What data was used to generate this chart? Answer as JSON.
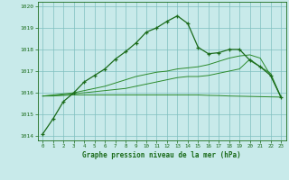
{
  "title": "Graphe pression niveau de la mer (hPa)",
  "background_color": "#c8eaea",
  "grid_color": "#7fbfbf",
  "line_color_main": "#1a6b1a",
  "line_color_secondary": "#2d8b2d",
  "xlim": [
    -0.5,
    23.5
  ],
  "ylim": [
    1013.8,
    1020.2
  ],
  "xticks": [
    0,
    1,
    2,
    3,
    4,
    5,
    6,
    7,
    8,
    9,
    10,
    11,
    12,
    13,
    14,
    15,
    16,
    17,
    18,
    19,
    20,
    21,
    22,
    23
  ],
  "yticks": [
    1014,
    1015,
    1016,
    1017,
    1018,
    1019,
    1020
  ],
  "series1": [
    1014.1,
    1014.8,
    1015.6,
    1016.0,
    1016.5,
    1016.8,
    1017.1,
    1017.55,
    1017.9,
    1018.3,
    1018.8,
    1019.0,
    1019.3,
    1019.55,
    1019.2,
    1018.1,
    1017.8,
    1017.85,
    1018.0,
    1018.0,
    1017.5,
    1017.2,
    1016.8,
    1015.8
  ],
  "series2": [
    1015.85,
    1015.85,
    1015.88,
    1015.9,
    1015.9,
    1015.9,
    1015.9,
    1015.9,
    1015.9,
    1015.9,
    1015.9,
    1015.9,
    1015.9,
    1015.9,
    1015.9,
    1015.9,
    1015.88,
    1015.87,
    1015.85,
    1015.84,
    1015.83,
    1015.82,
    1015.81,
    1015.8
  ],
  "series3": [
    1015.85,
    1015.87,
    1015.9,
    1015.95,
    1016.0,
    1016.05,
    1016.1,
    1016.15,
    1016.2,
    1016.3,
    1016.4,
    1016.5,
    1016.6,
    1016.7,
    1016.75,
    1016.75,
    1016.8,
    1016.9,
    1017.0,
    1017.1,
    1017.55,
    1017.2,
    1016.9,
    1015.8
  ],
  "series4": [
    1015.85,
    1015.9,
    1015.95,
    1016.0,
    1016.1,
    1016.2,
    1016.3,
    1016.45,
    1016.6,
    1016.75,
    1016.85,
    1016.95,
    1017.0,
    1017.1,
    1017.15,
    1017.2,
    1017.3,
    1017.45,
    1017.6,
    1017.7,
    1017.75,
    1017.6,
    1016.8,
    1015.8
  ]
}
